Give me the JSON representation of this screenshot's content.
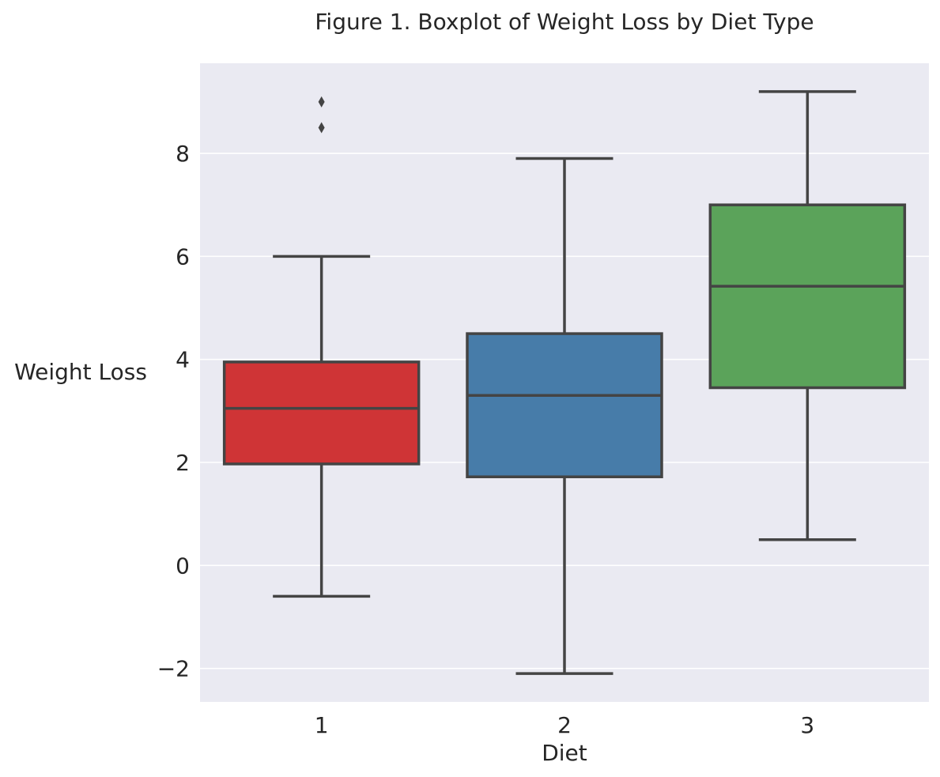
{
  "chart_data": {
    "type": "box",
    "title": "Figure 1. Boxplot of Weight Loss by Diet Type",
    "xlabel": "Diet",
    "ylabel": "Weight Loss",
    "ylim": [
      -2.65,
      9.75
    ],
    "yticks": [
      -2,
      0,
      2,
      4,
      6,
      8
    ],
    "ytick_labels": [
      "−2",
      "0",
      "2",
      "4",
      "6",
      "8"
    ],
    "grid": true,
    "categories": [
      "1",
      "2",
      "3"
    ],
    "boxes": [
      {
        "category": "1",
        "whisker_low": -0.6,
        "q1": 1.97,
        "median": 3.05,
        "q3": 3.95,
        "whisker_high": 6.0,
        "outliers": [
          8.5,
          9.0
        ],
        "color": "#CF3436"
      },
      {
        "category": "2",
        "whisker_low": -2.1,
        "q1": 1.72,
        "median": 3.3,
        "q3": 4.5,
        "whisker_high": 7.9,
        "outliers": [],
        "color": "#477CA9"
      },
      {
        "category": "3",
        "whisker_low": 0.5,
        "q1": 3.45,
        "median": 5.42,
        "q3": 7.0,
        "whisker_high": 9.2,
        "outliers": [],
        "color": "#5BA35A"
      }
    ],
    "colors": {
      "plot_background": "#EAEAF2",
      "grid": "#FFFFFF",
      "line": "#444444"
    }
  }
}
